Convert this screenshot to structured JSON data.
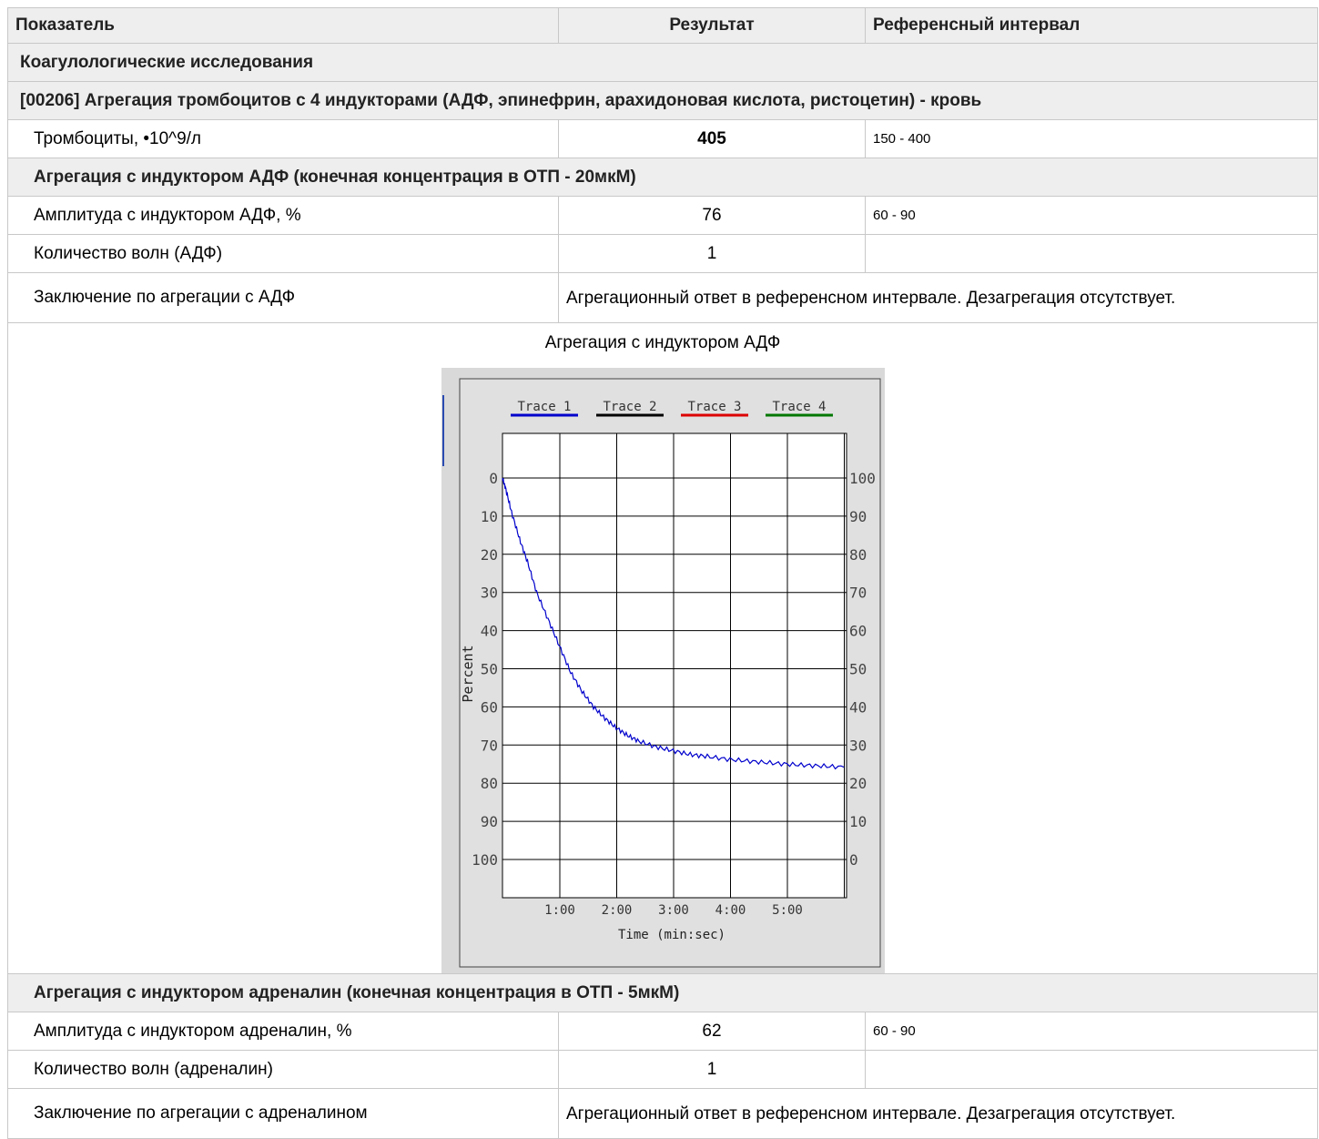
{
  "header": {
    "col_name": "Показатель",
    "col_result": "Результат",
    "col_ref": "Референсный интервал"
  },
  "section": "Коагулологические исследования",
  "test": "[00206] Агрегация тромбоцитов с 4 индукторами (АДФ, эпинефрин, арахидоновая кислота, ристоцетин) - кровь",
  "platelets": {
    "name": "Тромбоциты, •10^9/л",
    "value": "405",
    "ref": "150 - 400"
  },
  "adp": {
    "title": "Агрегация с индуктором АДФ (конечная концентрация в ОТП - 20мкМ)",
    "amp_name": "Амплитуда с индуктором АДФ, %",
    "amp_value": "76",
    "amp_ref": "60 - 90",
    "waves_name": "Количество волн (АДФ)",
    "waves_value": "1",
    "concl_name": "Заключение по агрегации с АДФ",
    "concl_text": "Агрегационный ответ в референсном интервале. Дезагрегация отсутствует.",
    "figure_title": "Агрегация с индуктором АДФ"
  },
  "adrenaline": {
    "title": "Агрегация с индуктором адреналин (конечная концентрация в ОТП - 5мкМ)",
    "amp_name": "Амплитуда с индуктором адреналин, %",
    "amp_value": "62",
    "amp_ref": "60 - 90",
    "waves_name": "Количество волн (адреналин)",
    "waves_value": "1",
    "concl_name": "Заключение по агрегации с адреналином",
    "concl_text": "Агрегационный ответ в референсном интервале. Дезагрегация отсутствует."
  },
  "chart_data": {
    "type": "line",
    "legend": [
      "Trace 1",
      "Trace 2",
      "Trace 3",
      "Trace 4"
    ],
    "legend_colors": [
      "#0000cc",
      "#000000",
      "#dd0000",
      "#007700"
    ],
    "legend_position": "top",
    "xlabel": "Time (min:sec)",
    "ylabel": "Percent",
    "x_ticks": [
      "1:00",
      "2:00",
      "3:00",
      "4:00",
      "5:00"
    ],
    "y_ticks_left": [
      "0",
      "10",
      "20",
      "30",
      "40",
      "50",
      "60",
      "70",
      "80",
      "90",
      "100"
    ],
    "y_ticks_right": [
      "100",
      "90",
      "80",
      "70",
      "60",
      "50",
      "40",
      "30",
      "20",
      "10",
      "0"
    ],
    "xlim_sec": [
      0,
      300
    ],
    "ylim": [
      0,
      100
    ],
    "y_inverted": true,
    "grid": true,
    "series": [
      {
        "name": "Trace 1",
        "color": "#0000cc",
        "x_sec": [
          0,
          3,
          8,
          15,
          22,
          30,
          40,
          50,
          60,
          70,
          80,
          90,
          100,
          110,
          120,
          135,
          150,
          165,
          180,
          200,
          220,
          240,
          260,
          280,
          300
        ],
        "y": [
          0,
          3,
          9,
          16,
          22,
          30,
          37,
          44,
          51,
          56,
          60,
          63,
          65.5,
          67.5,
          69,
          70.5,
          71.5,
          72.5,
          73,
          73.8,
          74.3,
          74.8,
          75.2,
          75.5,
          75.8
        ]
      }
    ]
  }
}
